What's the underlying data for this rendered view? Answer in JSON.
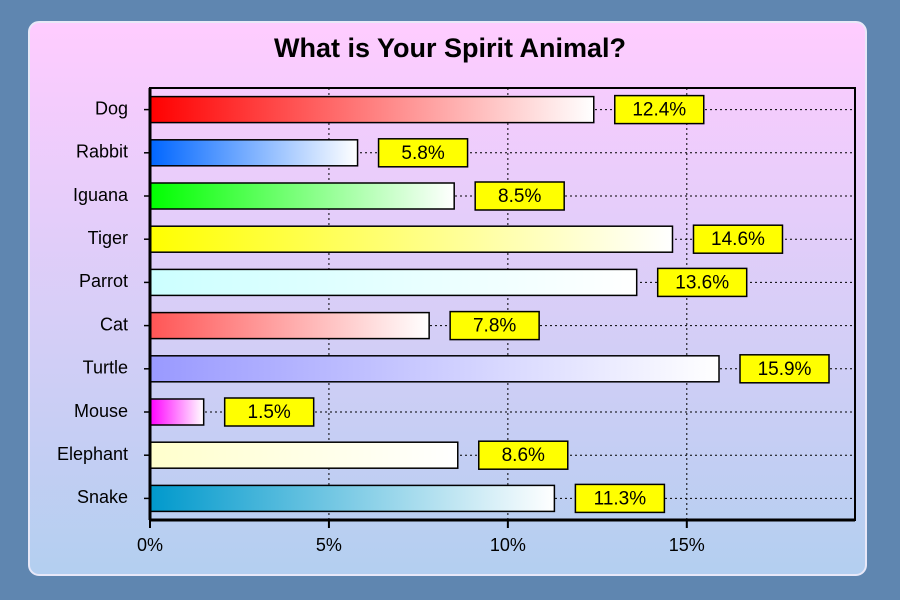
{
  "chart_data": {
    "type": "bar",
    "orientation": "horizontal",
    "title": "What is Your Spirit Animal?",
    "categories": [
      "Dog",
      "Rabbit",
      "Iguana",
      "Tiger",
      "Parrot",
      "Cat",
      "Turtle",
      "Mouse",
      "Elephant",
      "Snake"
    ],
    "values": [
      12.4,
      5.8,
      8.5,
      14.6,
      13.6,
      7.8,
      15.9,
      1.5,
      8.6,
      11.3
    ],
    "value_labels": [
      "12.4%",
      "5.8%",
      "8.5%",
      "14.6%",
      "13.6%",
      "7.8%",
      "15.9%",
      "1.5%",
      "8.6%",
      "11.3%"
    ],
    "colors": [
      "#ff0000",
      "#0066ff",
      "#00ff00",
      "#ffff00",
      "#ccffff",
      "#ff5555",
      "#9999ff",
      "#ff00ff",
      "#ffffcc",
      "#0099cc"
    ],
    "xlim": [
      0,
      19.7
    ],
    "xticks": [
      {
        "value": 0,
        "label": "0%"
      },
      {
        "value": 5,
        "label": "5%"
      },
      {
        "value": 10,
        "label": "10%"
      },
      {
        "value": 15,
        "label": "15%"
      }
    ],
    "grid": true
  }
}
